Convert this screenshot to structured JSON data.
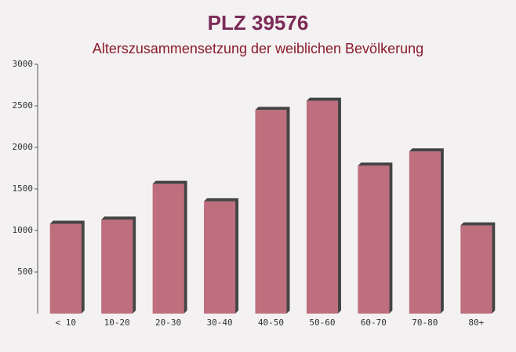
{
  "chart_data": {
    "type": "bar",
    "title": "PLZ 39576",
    "subtitle": "Alterszusammensetzung der weiblichen Bevölkerung",
    "categories": [
      "< 10",
      "10-20",
      "20-30",
      "30-40",
      "40-50",
      "50-60",
      "60-70",
      "70-80",
      "80+"
    ],
    "values": [
      1080,
      1130,
      1560,
      1350,
      2450,
      2560,
      1780,
      1950,
      1060
    ],
    "color": "#b85f6f",
    "ylim": [
      0,
      3000
    ],
    "yticks": [
      500,
      1000,
      1500,
      2000,
      2500,
      3000
    ]
  }
}
